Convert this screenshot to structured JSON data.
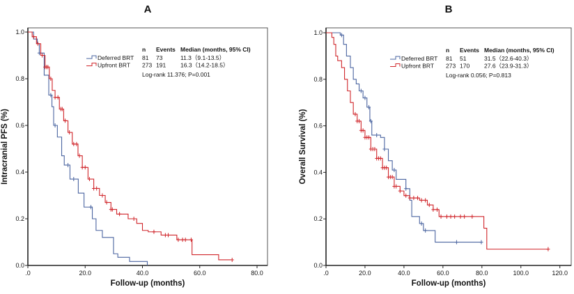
{
  "chart_data": [
    {
      "panel": "A",
      "type": "line",
      "title": "A",
      "xlabel": "Follow-up (months)",
      "ylabel": "Intracranial PFS (%)",
      "xlim": [
        0,
        80
      ],
      "ylim": [
        0,
        1
      ],
      "xticks": [
        ".0",
        "20.0",
        "40.0",
        "60.0",
        "80.0"
      ],
      "yticks": [
        "0.0",
        "0.2",
        "0.4",
        "0.6",
        "0.8",
        "1.0"
      ],
      "legend": {
        "headers": [
          "n",
          "Events",
          "Median (months, 95% CI)"
        ],
        "rows": [
          [
            "Deferred BRT",
            "81",
            "73",
            "11.3（9.1-13.5）"
          ],
          [
            "Upfront BRT",
            "273",
            "191",
            "16.3（14.2-18.5）"
          ]
        ],
        "note": "Log-rank 11.376; P=0.001"
      },
      "series": [
        {
          "name": "Deferred BRT",
          "color": "#4a64a0",
          "steps": [
            [
              0,
              1
            ],
            [
              2,
              0.97
            ],
            [
              3.3,
              0.95
            ],
            [
              4,
              0.91
            ],
            [
              5.7,
              0.815
            ],
            [
              7.3,
              0.73
            ],
            [
              8.4,
              0.68
            ],
            [
              9,
              0.6
            ],
            [
              10.3,
              0.55
            ],
            [
              11.8,
              0.47
            ],
            [
              12.7,
              0.43
            ],
            [
              14.7,
              0.37
            ],
            [
              17.6,
              0.31
            ],
            [
              19.6,
              0.25
            ],
            [
              22.5,
              0.2
            ],
            [
              23.8,
              0.15
            ],
            [
              26,
              0.12
            ],
            [
              29.9,
              0.05
            ],
            [
              31.4,
              0.035
            ],
            [
              35.5,
              0.017
            ],
            [
              41.7,
              0
            ]
          ],
          "censored": [
            4,
            8,
            9.5,
            14,
            16,
            22
          ]
        },
        {
          "name": "Upfront BRT",
          "color": "#d0252a",
          "steps": [
            [
              0,
              1
            ],
            [
              1.5,
              0.98
            ],
            [
              3,
              0.95
            ],
            [
              4.5,
              0.9
            ],
            [
              6,
              0.85
            ],
            [
              7.5,
              0.8
            ],
            [
              8.5,
              0.75
            ],
            [
              9.5,
              0.72
            ],
            [
              11,
              0.67
            ],
            [
              12.5,
              0.62
            ],
            [
              14,
              0.57
            ],
            [
              15.5,
              0.52
            ],
            [
              17.5,
              0.47
            ],
            [
              19,
              0.42
            ],
            [
              21,
              0.37
            ],
            [
              23,
              0.33
            ],
            [
              25,
              0.3
            ],
            [
              27,
              0.27
            ],
            [
              29,
              0.24
            ],
            [
              31,
              0.22
            ],
            [
              35,
              0.2
            ],
            [
              38,
              0.18
            ],
            [
              40,
              0.15
            ],
            [
              42,
              0.144
            ],
            [
              46.5,
              0.13
            ],
            [
              52,
              0.11
            ],
            [
              57.3,
              0.046
            ],
            [
              66.6,
              0.024
            ]
          ],
          "end": 71.3,
          "censored": [
            2,
            3.5,
            5,
            6,
            6.5,
            7,
            8,
            9.5,
            10.5,
            11.5,
            12,
            13,
            14.5,
            16,
            17,
            18,
            19,
            20,
            21.5,
            23,
            24,
            26,
            27.5,
            29,
            29.5,
            32,
            37,
            44,
            48,
            49,
            52.5,
            54,
            55,
            57,
            71.3
          ]
        }
      ]
    },
    {
      "panel": "B",
      "type": "line",
      "title": "B",
      "xlabel": "Follow-up (months)",
      "ylabel": "Overall Survival (%)",
      "xlim": [
        0,
        120
      ],
      "ylim": [
        0,
        1
      ],
      "xticks": [
        ".0",
        "20.0",
        "40.0",
        "60.0",
        "80.0",
        "100.0",
        "120.0"
      ],
      "yticks": [
        "0.0",
        "0.2",
        "0.4",
        "0.6",
        "0.8",
        "1.0"
      ],
      "legend": {
        "headers": [
          "n",
          "Events",
          "Median (months, 95% CI)"
        ],
        "rows": [
          [
            "Deferred BRT",
            "81",
            "51",
            "31.5（22.6-40.3）"
          ],
          [
            "Upfront BRT",
            "273",
            "170",
            "27.6（23.9-31.3）"
          ]
        ],
        "note": "Log-rank 0.056; P=0.813"
      },
      "series": [
        {
          "name": "Deferred BRT",
          "color": "#4a64a0",
          "steps": [
            [
              0,
              1
            ],
            [
              7.3,
              0.99
            ],
            [
              9,
              0.95
            ],
            [
              10.5,
              0.9
            ],
            [
              12.5,
              0.85
            ],
            [
              14,
              0.8
            ],
            [
              15.5,
              0.78
            ],
            [
              17,
              0.75
            ],
            [
              19,
              0.72
            ],
            [
              21,
              0.68
            ],
            [
              22.5,
              0.62
            ],
            [
              23.5,
              0.56
            ],
            [
              28,
              0.55
            ],
            [
              30,
              0.5
            ],
            [
              32,
              0.45
            ],
            [
              34,
              0.41
            ],
            [
              36,
              0.37
            ],
            [
              41,
              0.33
            ],
            [
              43,
              0.28
            ],
            [
              44,
              0.21
            ],
            [
              48,
              0.18
            ],
            [
              50,
              0.15
            ],
            [
              56,
              0.1
            ]
          ],
          "end": 79.7,
          "censored": [
            8,
            18,
            20,
            22,
            23,
            26,
            30,
            35,
            41,
            49,
            51,
            67,
            79.7
          ]
        },
        {
          "name": "Upfront BRT",
          "color": "#d0252a",
          "steps": [
            [
              0,
              1
            ],
            [
              3,
              0.98
            ],
            [
              4,
              0.95
            ],
            [
              5,
              0.9
            ],
            [
              6,
              0.88
            ],
            [
              8,
              0.85
            ],
            [
              9.5,
              0.8
            ],
            [
              11,
              0.75
            ],
            [
              12.5,
              0.7
            ],
            [
              14,
              0.65
            ],
            [
              16,
              0.62
            ],
            [
              18,
              0.58
            ],
            [
              20,
              0.55
            ],
            [
              23,
              0.5
            ],
            [
              26,
              0.46
            ],
            [
              29,
              0.42
            ],
            [
              32,
              0.38
            ],
            [
              35,
              0.34
            ],
            [
              38,
              0.32
            ],
            [
              40,
              0.3
            ],
            [
              43,
              0.29
            ],
            [
              48,
              0.28
            ],
            [
              52,
              0.26
            ],
            [
              55,
              0.24
            ],
            [
              58,
              0.21
            ],
            [
              81,
              0.16
            ],
            [
              82.5,
              0.07
            ]
          ],
          "end": 114,
          "censored": [
            15,
            16,
            17,
            18,
            19,
            20,
            21,
            22,
            23,
            24,
            25,
            26,
            27,
            28,
            29,
            30,
            31,
            32,
            33,
            34,
            35,
            36,
            38,
            41,
            43,
            45,
            47,
            49,
            51,
            53,
            55,
            57,
            59,
            62,
            64,
            66,
            69,
            71,
            75,
            114
          ]
        }
      ]
    }
  ]
}
